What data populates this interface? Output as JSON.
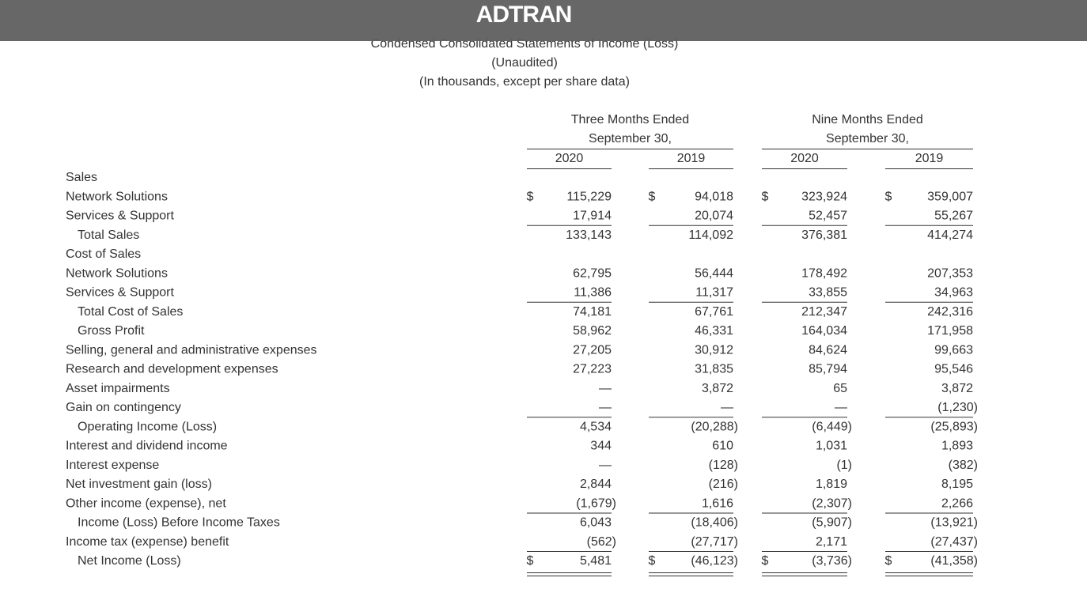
{
  "header": {
    "logo": "ADTRAN"
  },
  "title": [
    "Condensed Consolidated Statements of Income (Loss)",
    "(Unaudited)",
    "(In thousands, except per share data)"
  ],
  "column_groups": [
    {
      "lines": [
        "Three Months Ended",
        "September 30,"
      ],
      "years": [
        "2020",
        "2019"
      ]
    },
    {
      "lines": [
        "Nine Months Ended",
        "September 30,"
      ],
      "years": [
        "2020",
        "2019"
      ]
    }
  ],
  "rows": [
    {
      "label": "Sales"
    },
    {
      "label": "Network Solutions",
      "dollars": [
        "$",
        "$",
        "$",
        "$"
      ],
      "values": [
        "115,229",
        "94,018",
        "323,924",
        "359,007"
      ]
    },
    {
      "label": "Services & Support",
      "values": [
        "17,914",
        "20,074",
        "52,457",
        "55,267"
      ]
    },
    {
      "label": "Total Sales",
      "indent": true,
      "rule_above": true,
      "values": [
        "133,143",
        "114,092",
        "376,381",
        "414,274"
      ]
    },
    {
      "label": "Cost of Sales"
    },
    {
      "label": "Network Solutions",
      "values": [
        "62,795",
        "56,444",
        "178,492",
        "207,353"
      ]
    },
    {
      "label": "Services & Support",
      "values": [
        "11,386",
        "11,317",
        "33,855",
        "34,963"
      ]
    },
    {
      "label": "Total Cost of Sales",
      "indent": true,
      "rule_above": true,
      "values": [
        "74,181",
        "67,761",
        "212,347",
        "242,316"
      ]
    },
    {
      "label": "Gross Profit",
      "indent": true,
      "values": [
        "58,962",
        "46,331",
        "164,034",
        "171,958"
      ]
    },
    {
      "label": "Selling, general and administrative expenses",
      "values": [
        "27,205",
        "30,912",
        "84,624",
        "99,663"
      ]
    },
    {
      "label": "Research and development expenses",
      "values": [
        "27,223",
        "31,835",
        "85,794",
        "95,546"
      ]
    },
    {
      "label": "Asset impairments",
      "values": [
        "—",
        "3,872",
        "65",
        "3,872"
      ]
    },
    {
      "label": "Gain on contingency",
      "values": [
        "—",
        "—",
        "—",
        "(1,230)"
      ]
    },
    {
      "label": "Operating Income (Loss)",
      "indent": true,
      "rule_above": true,
      "values": [
        "4,534",
        "(20,288)",
        "(6,449)",
        "(25,893)"
      ]
    },
    {
      "label": "Interest and dividend income",
      "values": [
        "344",
        "610",
        "1,031",
        "1,893"
      ]
    },
    {
      "label": "Interest expense",
      "values": [
        "—",
        "(128)",
        "(1)",
        "(382)"
      ]
    },
    {
      "label": "Net investment gain (loss)",
      "values": [
        "2,844",
        "(216)",
        "1,819",
        "8,195"
      ]
    },
    {
      "label": "Other income (expense), net",
      "values": [
        "(1,679)",
        "1,616",
        "(2,307)",
        "2,266"
      ]
    },
    {
      "label": "Income (Loss) Before Income Taxes",
      "indent": true,
      "rule_above": true,
      "values": [
        "6,043",
        "(18,406)",
        "(5,907)",
        "(13,921)"
      ]
    },
    {
      "label": "Income tax (expense) benefit",
      "values": [
        "(562)",
        "(27,717)",
        "2,171",
        "(27,437)"
      ]
    },
    {
      "label": "Net Income (Loss)",
      "indent": true,
      "rule_above": true,
      "double_rule_below": true,
      "dollars": [
        "$",
        "$",
        "$",
        "$"
      ],
      "values": [
        "5,481",
        "(46,123)",
        "(3,736)",
        "(41,358)"
      ]
    }
  ]
}
